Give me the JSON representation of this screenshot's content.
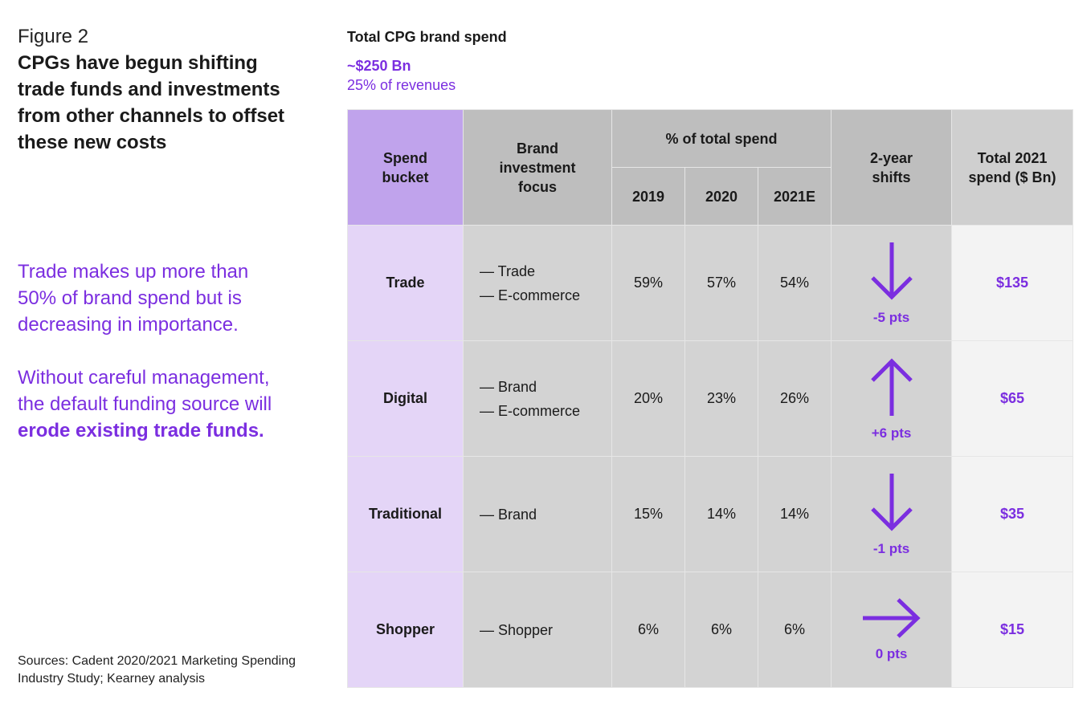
{
  "figure_label": "Figure 2",
  "figure_title": "CPGs have begun shifting trade funds and investments from other channels to offset these new costs",
  "callout": {
    "p1": "Trade makes up more than 50% of brand spend but is decreasing in importance.",
    "p2_prefix": "Without careful management, the default funding source will ",
    "p2_bold": "erode existing trade funds."
  },
  "sources": "Sources: Cadent 2020/2021 Marketing Spending Industry Study; Kearney analysis",
  "total": {
    "title": "Total CPG brand spend",
    "value": "~$250 Bn",
    "revenue": "25% of revenues"
  },
  "headers": {
    "spend_bucket": "Spend bucket",
    "focus": "Brand investment focus",
    "pct_total": "% of total spend",
    "y2019": "2019",
    "y2020": "2020",
    "y2021": "2021E",
    "shifts": "2-year shifts",
    "total_2021": "Total 2021 spend ($ Bn)"
  },
  "rows": [
    {
      "bucket": "Trade",
      "focus1": "— Trade",
      "focus2": "— E-commerce",
      "v2019": "59%",
      "v2020": "57%",
      "v2021": "54%",
      "direction": "down",
      "pts": "-5 pts",
      "total": "$135"
    },
    {
      "bucket": "Digital",
      "focus1": "— Brand",
      "focus2": "— E-commerce",
      "v2019": "20%",
      "v2020": "23%",
      "v2021": "26%",
      "direction": "up",
      "pts": "+6 pts",
      "total": "$65"
    },
    {
      "bucket": "Traditional",
      "focus1": "— Brand",
      "focus2": "",
      "v2019": "15%",
      "v2020": "14%",
      "v2021": "14%",
      "direction": "down",
      "pts": "-1 pts",
      "total": "$35"
    },
    {
      "bucket": "Shopper",
      "focus1": "— Shopper",
      "focus2": "",
      "v2019": "6%",
      "v2020": "6%",
      "v2021": "6%",
      "direction": "right",
      "pts": "0 pts",
      "total": "$15"
    }
  ],
  "colors": {
    "accent": "#7b2ee0",
    "header_spend": "#c0a3ec",
    "bucket_cell": "#e4d5f7",
    "gray_cell": "#d3d3d3",
    "total_cell": "#f3f3f3"
  }
}
